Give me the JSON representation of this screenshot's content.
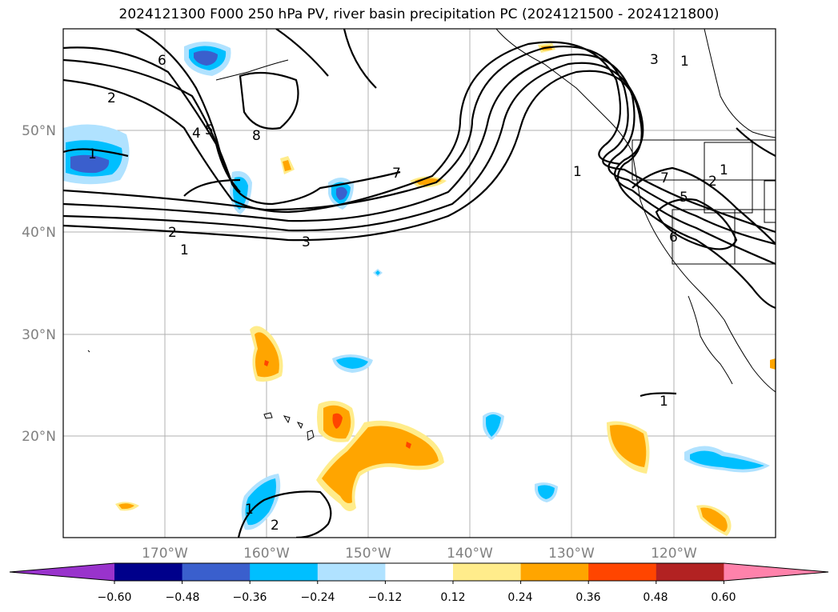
{
  "title": "2024121300 F000 250 hPa PV, river basin precipitation PC (2024121500 - 2024121800)",
  "lat_labels": [
    "50°N",
    "40°N",
    "30°N",
    "20°N"
  ],
  "lon_labels": [
    "170°W",
    "160°W",
    "150°W",
    "140°W",
    "130°W",
    "120°W"
  ],
  "colorbar": {
    "ticks": [
      "−0.60",
      "−0.48",
      "−0.36",
      "−0.24",
      "−0.12",
      "0.12",
      "0.24",
      "0.36",
      "0.48",
      "0.60"
    ],
    "colors": [
      "#9933cc",
      "#00008b",
      "#3a5fcd",
      "#00bfff",
      "#b0e2ff",
      "#ffffff",
      "#ffec8b",
      "#ffa500",
      "#ff4500",
      "#b22222",
      "#ff82ab"
    ]
  },
  "contour_labels": [
    "6",
    "2",
    "5",
    "4",
    "8",
    "1",
    "7",
    "2",
    "3",
    "1",
    "3",
    "1",
    "1",
    "7",
    "2",
    "5",
    "6",
    "1",
    "1",
    "2",
    "1"
  ]
}
